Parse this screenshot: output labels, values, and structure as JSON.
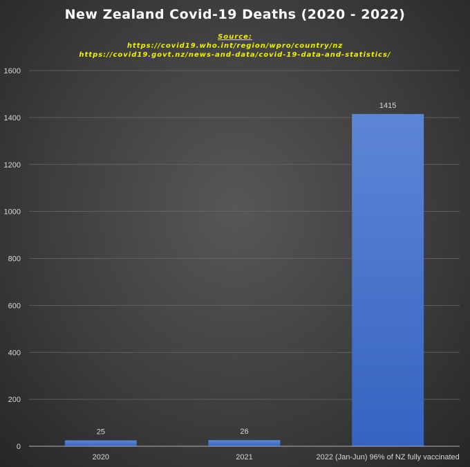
{
  "chart_data": {
    "type": "bar",
    "title": "New Zealand Covid-19 Deaths (2020 - 2022)",
    "source_label": "Source:",
    "sources": [
      "https://covid19.who.int/region/wpro/country/nz",
      "https://covid19.govt.nz/news-and-data/covid-19-data-and-statistics/"
    ],
    "categories": [
      "2020",
      "2021",
      "2022 (Jan-Jun) 96% of NZ fully vaccinated"
    ],
    "values": [
      25,
      26,
      1415
    ],
    "data_labels": [
      "25",
      "26",
      "1415"
    ],
    "ylim": [
      0,
      1600
    ],
    "yticks": [
      "0",
      "200",
      "400",
      "600",
      "800",
      "1000",
      "1200",
      "1400",
      "1600"
    ],
    "grid": true,
    "colors": {
      "bar": "#4a78d0",
      "bar_top": "#5d86d6",
      "bar_bottom": "#3563c0",
      "title": "#ffffff",
      "source": "#f0f000"
    }
  }
}
